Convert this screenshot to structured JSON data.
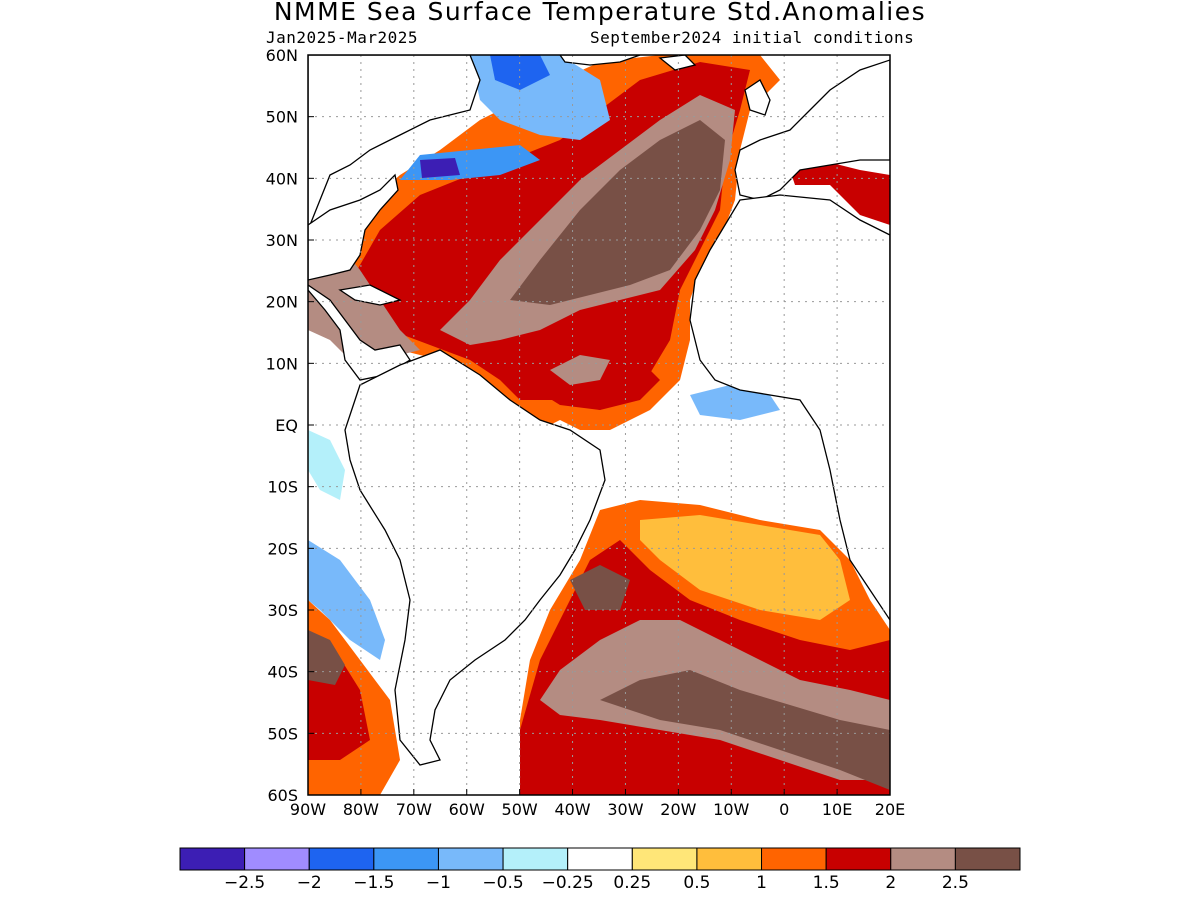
{
  "title": "NMME Sea Surface Temperature Std.Anomalies",
  "subtitle_left": "Jan2025-Mar2025",
  "subtitle_right": "September2024 initial conditions",
  "map": {
    "lon_range": [
      -90,
      20
    ],
    "lat_range": [
      -60,
      60
    ],
    "lon_ticks": [
      {
        "value": -90,
        "label": "90W"
      },
      {
        "value": -80,
        "label": "80W"
      },
      {
        "value": -70,
        "label": "70W"
      },
      {
        "value": -60,
        "label": "60W"
      },
      {
        "value": -50,
        "label": "50W"
      },
      {
        "value": -40,
        "label": "40W"
      },
      {
        "value": -30,
        "label": "30W"
      },
      {
        "value": -20,
        "label": "20W"
      },
      {
        "value": -10,
        "label": "10W"
      },
      {
        "value": 0,
        "label": "0"
      },
      {
        "value": 10,
        "label": "10E"
      },
      {
        "value": 20,
        "label": "20E"
      }
    ],
    "lat_ticks": [
      {
        "value": 60,
        "label": "60N"
      },
      {
        "value": 50,
        "label": "50N"
      },
      {
        "value": 40,
        "label": "40N"
      },
      {
        "value": 30,
        "label": "30N"
      },
      {
        "value": 20,
        "label": "20N"
      },
      {
        "value": 10,
        "label": "10N"
      },
      {
        "value": 0,
        "label": "EQ"
      },
      {
        "value": -10,
        "label": "10S"
      },
      {
        "value": -20,
        "label": "20S"
      },
      {
        "value": -30,
        "label": "30S"
      },
      {
        "value": -40,
        "label": "40S"
      },
      {
        "value": -50,
        "label": "50S"
      },
      {
        "value": -60,
        "label": "60S"
      }
    ],
    "grid": true
  },
  "colorbar": {
    "colors": [
      "#3c1eb4",
      "#a08cff",
      "#1e64f0",
      "#3c96f5",
      "#78b9fa",
      "#b4f0fa",
      "#ffffff",
      "#ffe678",
      "#ffbe3c",
      "#ff6400",
      "#c80000",
      "#b48c82",
      "#785046"
    ],
    "labels": [
      "-2.5",
      "-2",
      "-1.5",
      "-1",
      "-0.5",
      "-0.25",
      "0.25",
      "0.5",
      "1",
      "1.5",
      "2",
      "2.5"
    ]
  }
}
